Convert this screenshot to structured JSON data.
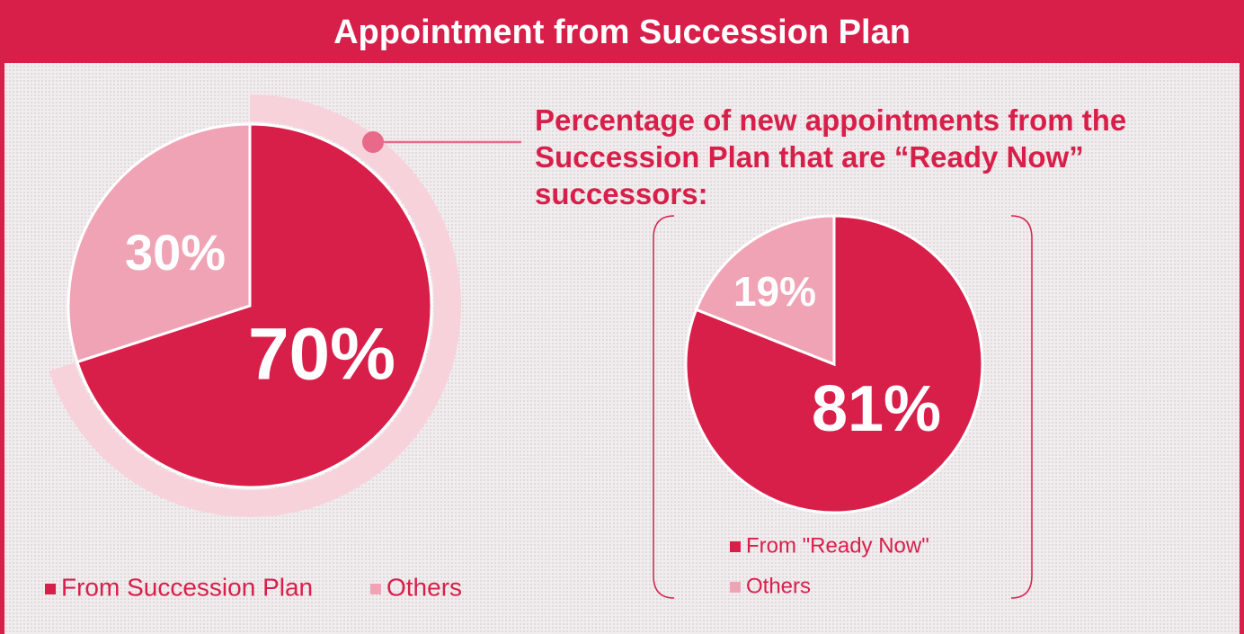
{
  "title": "Appointment from Succession Plan",
  "annotation": [
    "Percentage of new appointments from the",
    "Succession Plan that are “Ready Now”",
    "successors:"
  ],
  "chart_data": [
    {
      "type": "pie",
      "categories": [
        "From Succession Plan",
        "Others"
      ],
      "values": [
        70,
        30
      ],
      "value_labels": [
        "70%",
        "30%"
      ],
      "colors": [
        "#d81f4a",
        "#f0a3b5"
      ],
      "legend": "bottom-left"
    },
    {
      "type": "pie",
      "categories": [
        "From \"Ready Now\"",
        "Others"
      ],
      "values": [
        81,
        19
      ],
      "value_labels": [
        "81%",
        "19%"
      ],
      "colors": [
        "#d81f4a",
        "#f0a3b5"
      ],
      "legend": "bottom"
    }
  ]
}
